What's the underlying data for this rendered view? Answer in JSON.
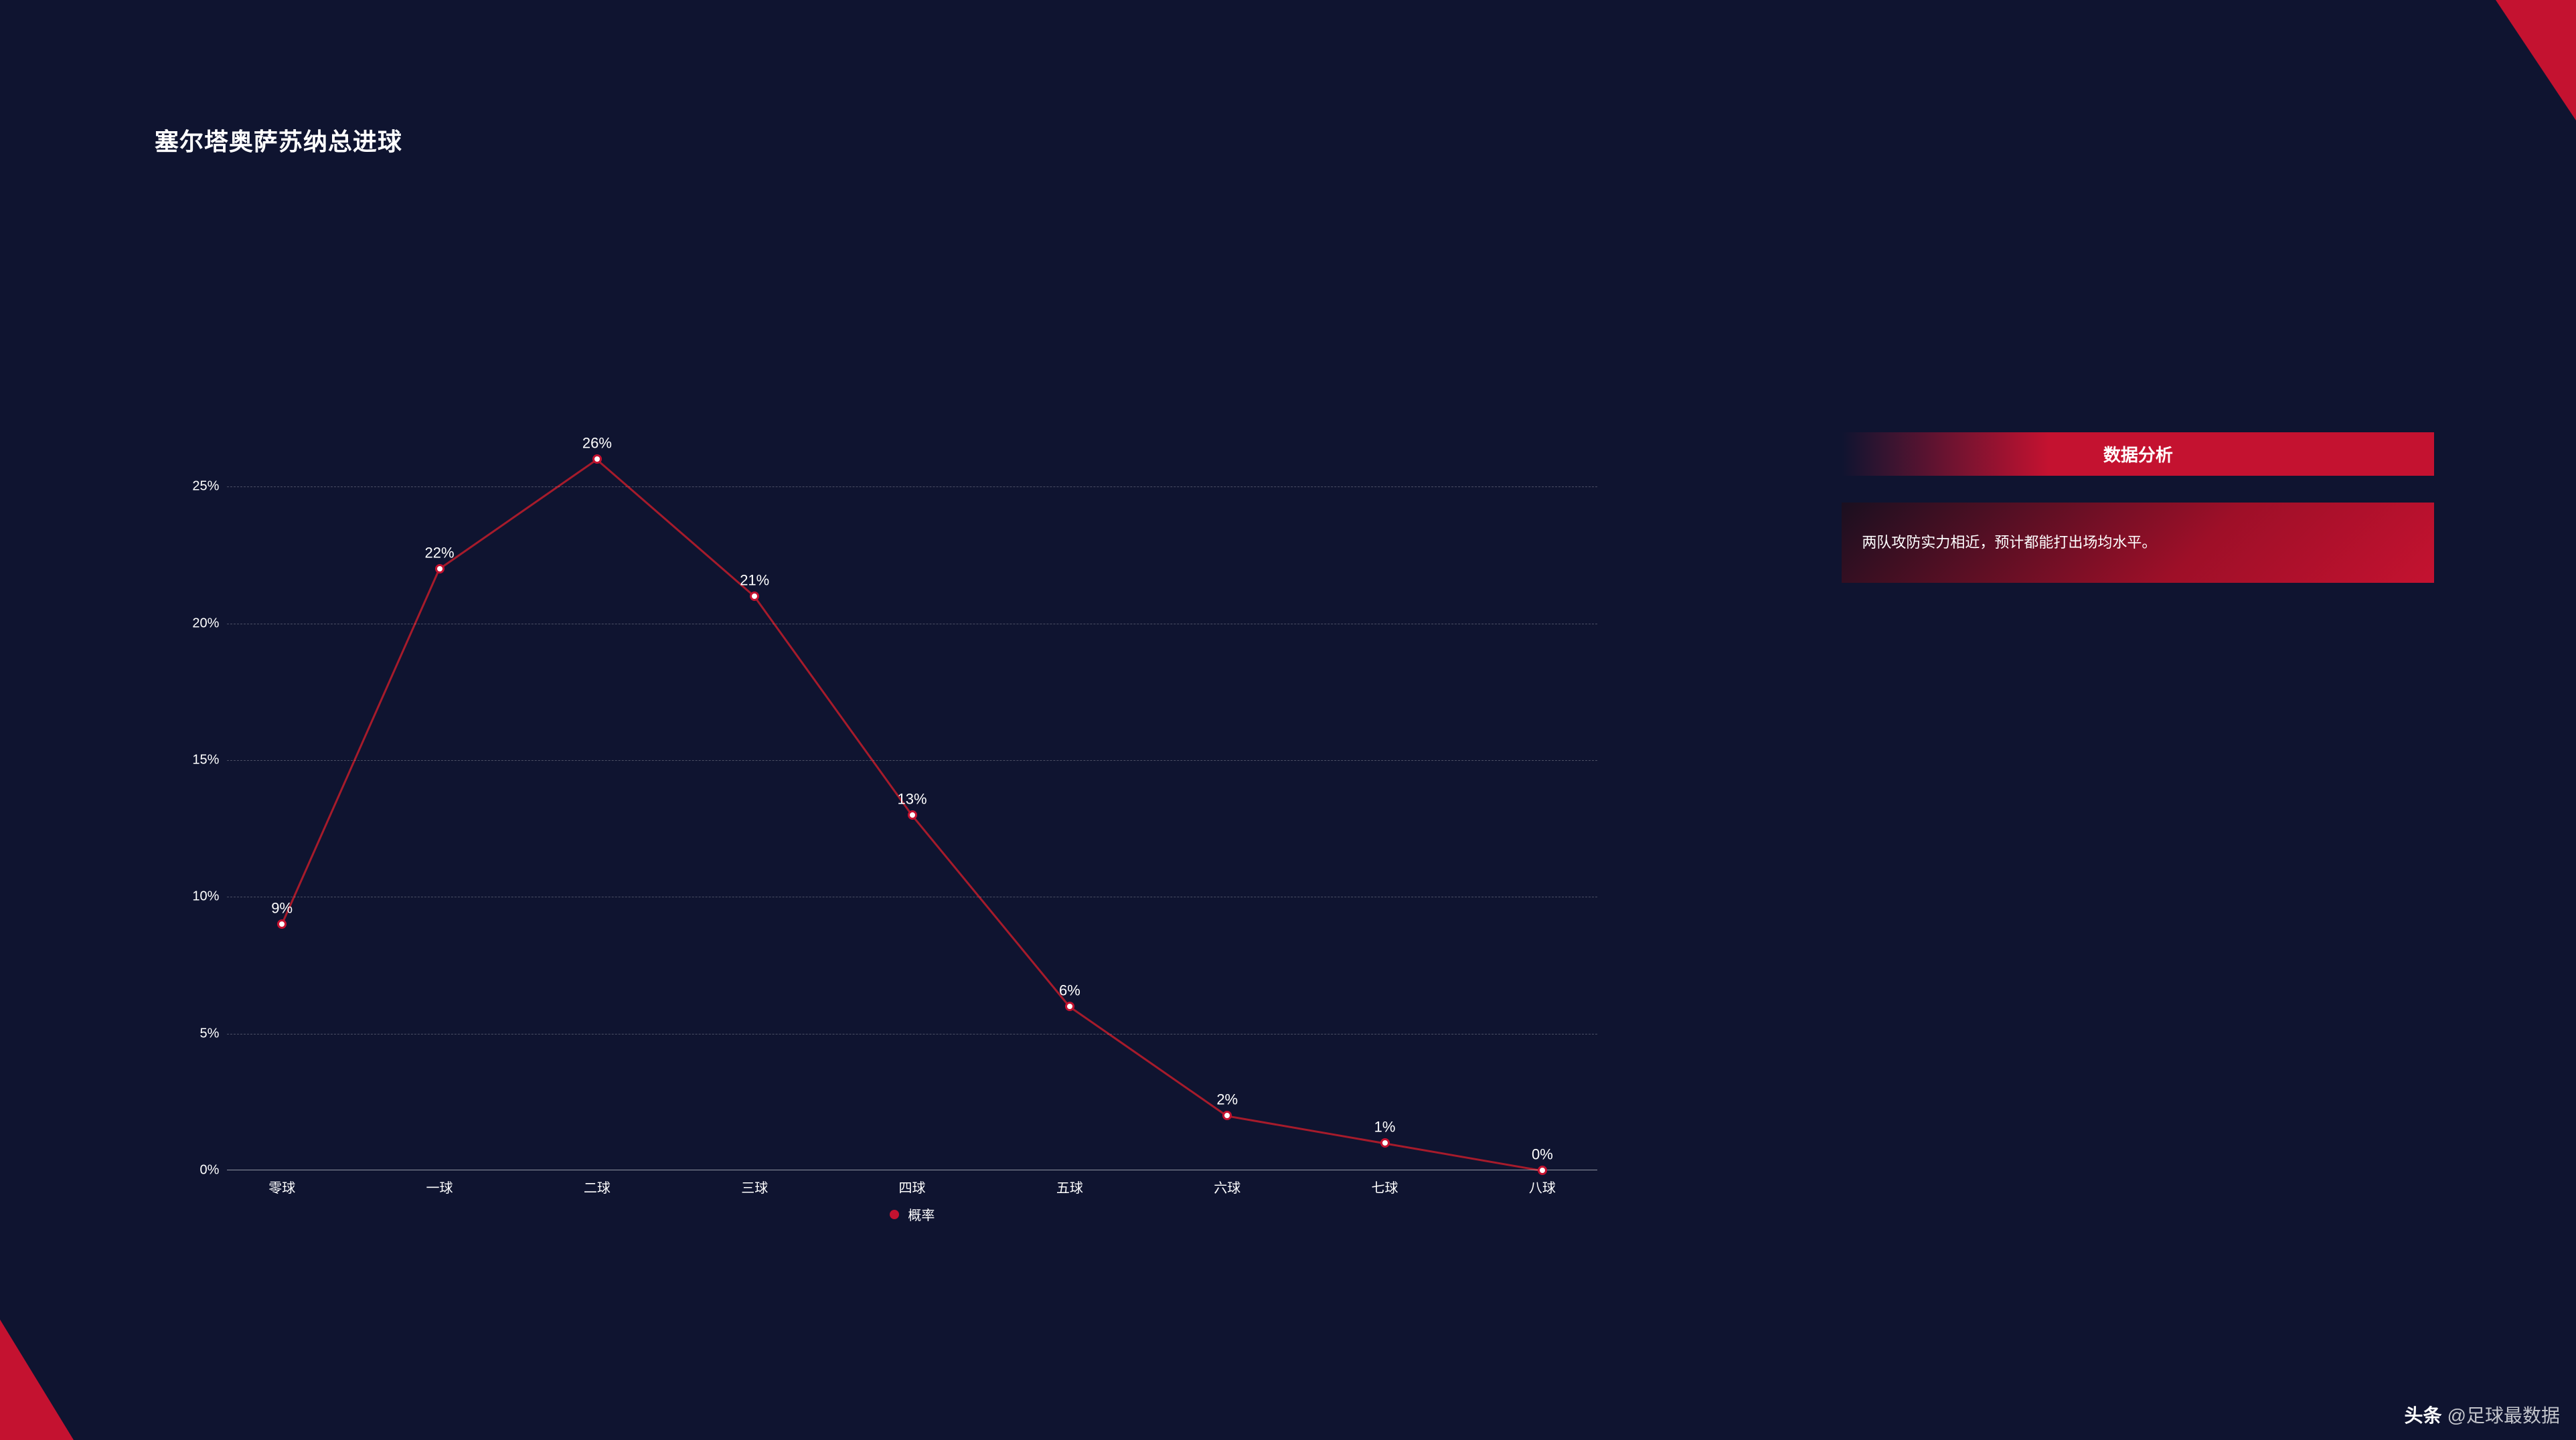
{
  "title": "塞尔塔奥萨苏纳总进球",
  "chart": {
    "type": "line",
    "categories": [
      "零球",
      "一球",
      "二球",
      "三球",
      "四球",
      "五球",
      "六球",
      "七球",
      "八球"
    ],
    "values": [
      9,
      22,
      26,
      21,
      13,
      6,
      2,
      1,
      0
    ],
    "value_labels": [
      "9%",
      "22%",
      "26%",
      "21%",
      "13%",
      "6%",
      "2%",
      "1%",
      "0%"
    ],
    "yticks": [
      0,
      5,
      10,
      15,
      20,
      25
    ],
    "ytick_labels": [
      "0%",
      "5%",
      "10%",
      "15%",
      "20%",
      "25%"
    ],
    "ymax": 27,
    "line_color": "#a61b2b",
    "line_width": 3,
    "marker_fill": "#ffffff",
    "marker_stroke": "#c41230",
    "marker_stroke_width": 3,
    "marker_radius": 7,
    "grid_color": "rgba(255,255,255,0.25)",
    "axis_color": "rgba(255,255,255,0.55)",
    "label_color": "#ffffff",
    "label_fontsize": 20,
    "value_label_fontsize": 22,
    "legend_label": "概率",
    "legend_dot_color": "#c41230"
  },
  "sidebar": {
    "header": "数据分析",
    "body": "两队攻防实力相近，预计都能打出场均水平。",
    "header_gradient_from": "#0f1430",
    "header_gradient_to": "#c41230",
    "body_gradient_from": "#1a0f20",
    "body_gradient_to": "#c41230"
  },
  "colors": {
    "background": "#0f1430",
    "accent": "#c41230",
    "text": "#ffffff"
  },
  "watermark": {
    "brand": "头条",
    "handle": "@足球最数据"
  }
}
